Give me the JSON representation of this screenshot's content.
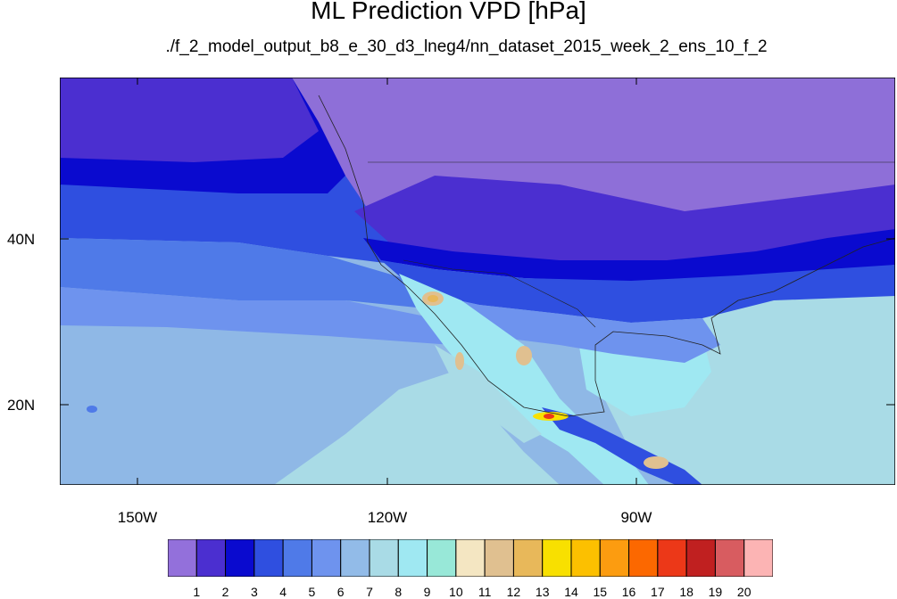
{
  "title": "ML Prediction VPD [hPa]",
  "subtitle": "./f_2_model_output_b8_e_30_d3_lneg4/nn_dataset_2015_week_2_ens_10_f_2",
  "map": {
    "projection": "cylindrical-equidistant",
    "lat_labels": [
      "40N",
      "20N"
    ],
    "lon_labels": [
      "150W",
      "120W",
      "90W"
    ],
    "land_color": "#8e6fd8",
    "ocean_light": "#9ec3ea"
  },
  "colorbar": {
    "labels": [
      "1",
      "2",
      "3",
      "4",
      "5",
      "6",
      "7",
      "8",
      "9",
      "10",
      "11",
      "12",
      "13",
      "14",
      "15",
      "16",
      "17",
      "18",
      "19",
      "20"
    ],
    "colors": [
      "#9370db",
      "#4b2fd0",
      "#0a0acf",
      "#2f4fe0",
      "#4f7ae8",
      "#6e93ee",
      "#92bbe8",
      "#a9dbe6",
      "#9fe8f2",
      "#98e8d8",
      "#f4e6c2",
      "#e0c090",
      "#e8b85a",
      "#f8e000",
      "#fcc000",
      "#fc9c10",
      "#fc6800",
      "#ec3818",
      "#c02020",
      "#d85c60",
      "#fcb4b4"
    ]
  }
}
